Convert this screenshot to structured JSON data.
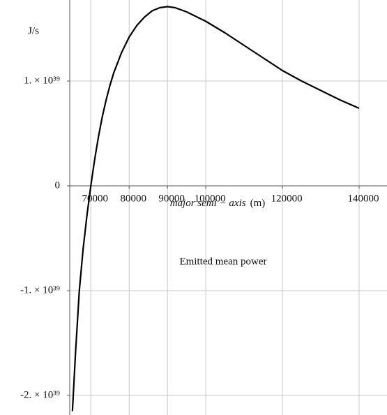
{
  "chart_data": {
    "type": "line",
    "title": "Emitted mean power",
    "x_label": "major semi − axis",
    "x_unit": "(m)",
    "y_label": "J/s",
    "x": [
      65200,
      66000,
      67000,
      68000,
      69000,
      70000,
      71000,
      72000,
      73000,
      74000,
      75000,
      76000,
      78000,
      80000,
      82000,
      84000,
      86000,
      88000,
      90000,
      92000,
      95000,
      100000,
      105000,
      110000,
      115000,
      120000,
      125000,
      130000,
      135000,
      140000
    ],
    "series": [
      {
        "name": "Emitted mean power",
        "color": "#000000",
        "values": [
          -2.15e+39,
          -1.6e+39,
          -1e+39,
          -6e+38,
          -2.8e+38,
          0,
          2.5e+38,
          4.7e+38,
          6.6e+38,
          8.2e+38,
          9.6e+38,
          1.08e+39,
          1.27e+39,
          1.42e+39,
          1.53e+39,
          1.61e+39,
          1.67e+39,
          1.7e+39,
          1.71e+39,
          1.7e+39,
          1.66e+39,
          1.57e+39,
          1.46e+39,
          1.34e+39,
          1.22e+39,
          1.1e+39,
          1e+39,
          9.1e+38,
          8.2e+38,
          7.4e+38
        ]
      }
    ],
    "xlim": [
      64500,
      141000
    ],
    "ylim": [
      -2.18e+39,
      1.75e+39
    ],
    "xticks": [
      70000,
      80000,
      90000,
      100000,
      120000,
      140000
    ],
    "yticks": [
      {
        "value": -2e+39,
        "label": "-2. × 10³⁹"
      },
      {
        "value": -1e+39,
        "label": "-1. × 10³⁹"
      },
      0,
      {
        "value": 1e+39,
        "label": "1. × 10³⁹"
      }
    ],
    "grid": true
  }
}
